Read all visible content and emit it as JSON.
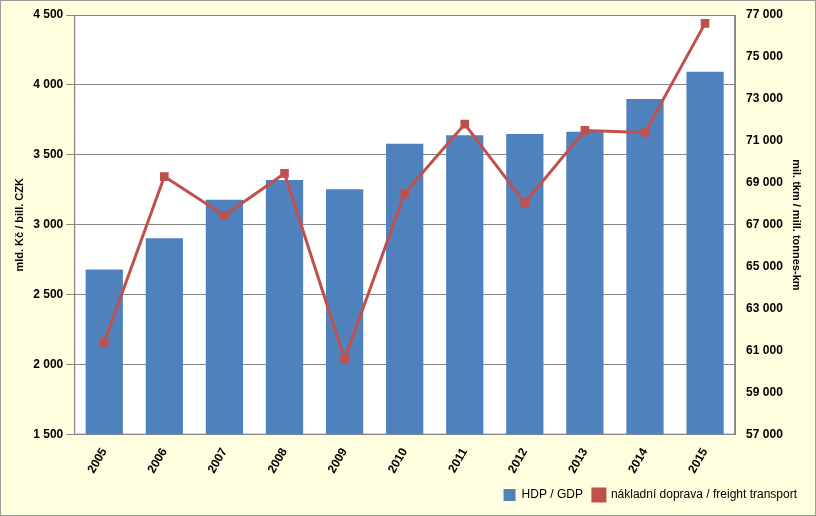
{
  "chart_data": {
    "type": "bar",
    "categories": [
      "2005",
      "2006",
      "2007",
      "2008",
      "2009",
      "2010",
      "2011",
      "2012",
      "2013",
      "2014",
      "2015"
    ],
    "series": [
      {
        "name": "HDP / GDP",
        "type": "bar",
        "color": "#4f81bd",
        "values": [
          2680,
          2905,
          3180,
          3320,
          3255,
          3580,
          3640,
          3650,
          3665,
          3900,
          4095
        ]
      },
      {
        "name": "nákladní doprava / freight transport",
        "type": "line",
        "color": "#c0504d",
        "marker": "square",
        "axis": "y2",
        "values": [
          61400,
          69300,
          67450,
          69450,
          60600,
          68500,
          71800,
          68050,
          71500,
          71400,
          76600
        ]
      }
    ],
    "y_label": "mld. Kč / bill. CZK",
    "y2_label": "mil. tkm / mill. tonnes-km",
    "ylim": [
      1500,
      4500
    ],
    "yticks": [
      {
        "value": 1500,
        "label": "1 500"
      },
      {
        "value": 2000,
        "label": "2 000"
      },
      {
        "value": 2500,
        "label": "2 500"
      },
      {
        "value": 3000,
        "label": "3 000"
      },
      {
        "value": 3500,
        "label": "3 500"
      },
      {
        "value": 4000,
        "label": "4 000"
      },
      {
        "value": 4500,
        "label": "4 500"
      }
    ],
    "y2lim": [
      57000,
      77000
    ],
    "y2ticks": [
      {
        "value": 57000,
        "label": "57 000"
      },
      {
        "value": 59000,
        "label": "59 000"
      },
      {
        "value": 61000,
        "label": "61 000"
      },
      {
        "value": 63000,
        "label": "63 000"
      },
      {
        "value": 65000,
        "label": "65 000"
      },
      {
        "value": 67000,
        "label": "67 000"
      },
      {
        "value": 69000,
        "label": "69 000"
      },
      {
        "value": 71000,
        "label": "71 000"
      },
      {
        "value": 73000,
        "label": "73 000"
      },
      {
        "value": 75000,
        "label": "75 000"
      },
      {
        "value": 77000,
        "label": "77 000"
      }
    ],
    "grid": true,
    "legend": "bottom"
  }
}
